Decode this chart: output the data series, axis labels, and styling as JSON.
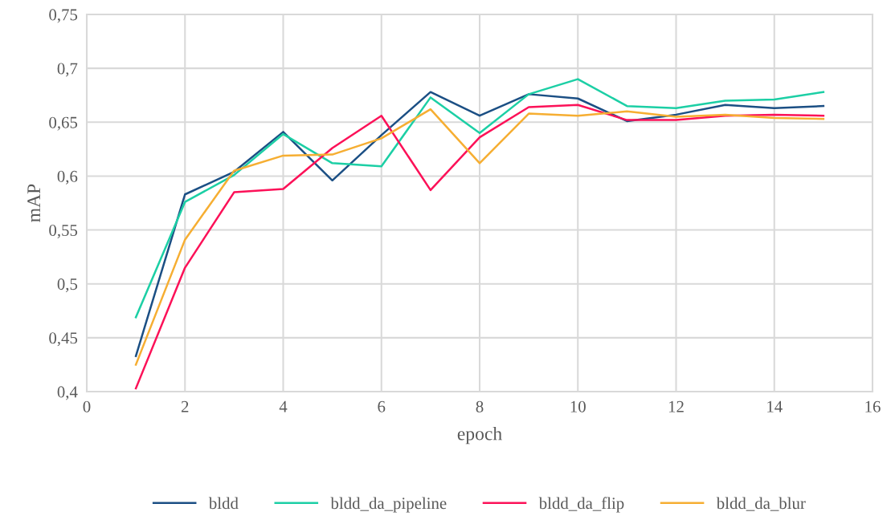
{
  "chart_data": {
    "type": "line",
    "xlabel": "epoch",
    "ylabel": "mAP",
    "x": [
      1,
      2,
      3,
      4,
      5,
      6,
      7,
      8,
      9,
      10,
      11,
      12,
      13,
      14,
      15
    ],
    "series": [
      {
        "name": "bldd",
        "color": "#1b4f84",
        "values": [
          0.433,
          0.583,
          0.604,
          0.641,
          0.596,
          0.638,
          0.678,
          0.656,
          0.676,
          0.672,
          0.651,
          0.657,
          0.666,
          0.663,
          0.665
        ]
      },
      {
        "name": "bldd_da_pipeline",
        "color": "#1ccfa5",
        "values": [
          0.469,
          0.576,
          0.601,
          0.639,
          0.612,
          0.609,
          0.673,
          0.64,
          0.676,
          0.69,
          0.665,
          0.663,
          0.67,
          0.671,
          0.678
        ]
      },
      {
        "name": "bldd_da_flip",
        "color": "#fc1158",
        "values": [
          0.403,
          0.515,
          0.585,
          0.588,
          0.626,
          0.656,
          0.587,
          0.636,
          0.664,
          0.666,
          0.652,
          0.652,
          0.656,
          0.657,
          0.656
        ]
      },
      {
        "name": "bldd_da_blur",
        "color": "#f6ae32",
        "values": [
          0.425,
          0.541,
          0.605,
          0.619,
          0.62,
          0.635,
          0.662,
          0.612,
          0.658,
          0.656,
          0.66,
          0.655,
          0.657,
          0.654,
          0.653
        ]
      }
    ],
    "xlim": [
      0,
      16
    ],
    "xticks": [
      0,
      2,
      4,
      6,
      8,
      10,
      12,
      14,
      16
    ],
    "ylim": [
      0.4,
      0.75
    ],
    "yticks": [
      {
        "value": 0.4,
        "label": "0,4"
      },
      {
        "value": 0.45,
        "label": "0,45"
      },
      {
        "value": 0.5,
        "label": "0,5"
      },
      {
        "value": 0.55,
        "label": "0,55"
      },
      {
        "value": 0.6,
        "label": "0,6"
      },
      {
        "value": 0.65,
        "label": "0,65"
      },
      {
        "value": 0.7,
        "label": "0,7"
      },
      {
        "value": 0.75,
        "label": "0,75"
      }
    ],
    "grid": true,
    "legend": "bottom",
    "marker": "none",
    "line_style": "solid"
  }
}
